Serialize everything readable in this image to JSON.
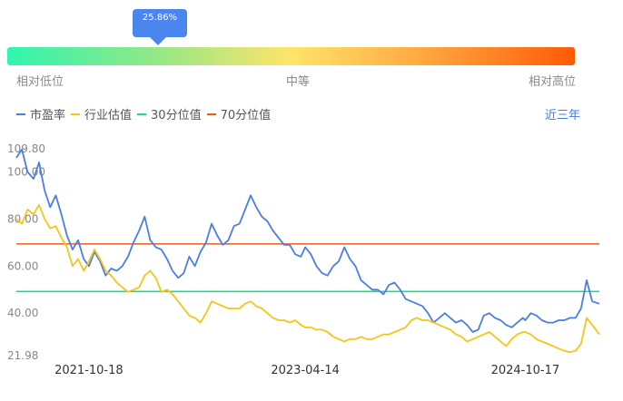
{
  "percentile": {
    "label": "25.86%",
    "value": 25.86,
    "gradient_colors": [
      "#2ff5b0",
      "#8ee888",
      "#ffe46a",
      "#ffa33d",
      "#ff5a06"
    ],
    "scale_labels": [
      "相对低位",
      "中等",
      "相对高位"
    ]
  },
  "legend": [
    {
      "label": "市盈率",
      "color": "#4a7de6"
    },
    {
      "label": "行业估值",
      "color": "#f5c518"
    },
    {
      "label": "30分位值",
      "color": "#22d98a"
    },
    {
      "label": "70分位值",
      "color": "#f05a14"
    }
  ],
  "range_selector": {
    "label": "近三年"
  },
  "chart_data": {
    "type": "line",
    "x_ticks": [
      "2021-10-18",
      "2023-04-14",
      "2024-10-17"
    ],
    "y_ticks": [
      "109.80",
      "100.00",
      "80.00",
      "60.00",
      "40.00",
      "21.98"
    ],
    "ylim": [
      21.98,
      109.8
    ],
    "xlim": [
      "2021-04-19",
      "2025-04-21"
    ],
    "reference_lines": [
      {
        "name": "30分位值",
        "value": 49.2,
        "color": "#22d98a"
      },
      {
        "name": "70分位值",
        "value": 69.4,
        "color": "#f05a14"
      }
    ],
    "series": [
      {
        "name": "市盈率",
        "color": "#4a7de6",
        "points": [
          [
            "2021-04-19",
            106
          ],
          [
            "2021-05-03",
            109.5
          ],
          [
            "2021-05-17",
            100
          ],
          [
            "2021-06-01",
            97
          ],
          [
            "2021-06-15",
            104
          ],
          [
            "2021-06-29",
            92
          ],
          [
            "2021-07-13",
            85
          ],
          [
            "2021-07-27",
            90
          ],
          [
            "2021-08-10",
            82
          ],
          [
            "2021-08-24",
            73
          ],
          [
            "2021-09-07",
            67
          ],
          [
            "2021-09-21",
            71
          ],
          [
            "2021-10-05",
            63
          ],
          [
            "2021-10-18",
            60
          ],
          [
            "2021-11-01",
            66
          ],
          [
            "2021-11-15",
            62
          ],
          [
            "2021-11-29",
            56
          ],
          [
            "2021-12-13",
            59
          ],
          [
            "2021-12-27",
            58
          ],
          [
            "2022-01-10",
            60
          ],
          [
            "2022-01-24",
            64
          ],
          [
            "2022-02-07",
            70
          ],
          [
            "2022-02-21",
            75
          ],
          [
            "2022-03-07",
            81
          ],
          [
            "2022-03-21",
            71
          ],
          [
            "2022-04-04",
            68
          ],
          [
            "2022-04-18",
            67
          ],
          [
            "2022-05-02",
            63
          ],
          [
            "2022-05-16",
            58
          ],
          [
            "2022-05-30",
            55
          ],
          [
            "2022-06-13",
            57
          ],
          [
            "2022-06-27",
            64
          ],
          [
            "2022-07-11",
            60
          ],
          [
            "2022-07-25",
            66
          ],
          [
            "2022-08-08",
            70
          ],
          [
            "2022-08-22",
            78
          ],
          [
            "2022-09-05",
            73
          ],
          [
            "2022-09-19",
            69
          ],
          [
            "2022-10-03",
            71
          ],
          [
            "2022-10-17",
            77
          ],
          [
            "2022-10-31",
            78
          ],
          [
            "2022-11-14",
            84
          ],
          [
            "2022-11-28",
            90
          ],
          [
            "2022-12-12",
            85
          ],
          [
            "2022-12-26",
            81
          ],
          [
            "2023-01-09",
            79
          ],
          [
            "2023-01-23",
            75
          ],
          [
            "2023-02-06",
            72
          ],
          [
            "2023-02-20",
            69
          ],
          [
            "2023-03-06",
            69
          ],
          [
            "2023-03-20",
            65
          ],
          [
            "2023-04-03",
            64
          ],
          [
            "2023-04-14",
            68
          ],
          [
            "2023-04-28",
            65
          ],
          [
            "2023-05-12",
            60
          ],
          [
            "2023-05-26",
            57
          ],
          [
            "2023-06-09",
            56
          ],
          [
            "2023-06-23",
            60
          ],
          [
            "2023-07-07",
            62
          ],
          [
            "2023-07-21",
            68
          ],
          [
            "2023-08-04",
            63
          ],
          [
            "2023-08-18",
            60
          ],
          [
            "2023-09-01",
            54
          ],
          [
            "2023-09-15",
            52
          ],
          [
            "2023-09-29",
            50
          ],
          [
            "2023-10-13",
            50
          ],
          [
            "2023-10-27",
            48
          ],
          [
            "2023-11-10",
            52
          ],
          [
            "2023-11-24",
            53
          ],
          [
            "2023-12-08",
            50
          ],
          [
            "2023-12-22",
            46
          ],
          [
            "2024-01-05",
            45
          ],
          [
            "2024-01-19",
            44
          ],
          [
            "2024-02-02",
            43
          ],
          [
            "2024-02-16",
            40
          ],
          [
            "2024-03-01",
            36
          ],
          [
            "2024-03-15",
            38
          ],
          [
            "2024-03-29",
            40
          ],
          [
            "2024-04-12",
            38
          ],
          [
            "2024-04-26",
            36
          ],
          [
            "2024-05-10",
            37
          ],
          [
            "2024-05-24",
            35
          ],
          [
            "2024-06-07",
            32
          ],
          [
            "2024-06-21",
            33
          ],
          [
            "2024-07-05",
            39
          ],
          [
            "2024-07-19",
            40
          ],
          [
            "2024-08-02",
            38
          ],
          [
            "2024-08-16",
            37
          ],
          [
            "2024-08-30",
            35
          ],
          [
            "2024-09-13",
            34
          ],
          [
            "2024-09-27",
            36
          ],
          [
            "2024-10-11",
            38
          ],
          [
            "2024-10-17",
            37
          ],
          [
            "2024-10-31",
            40
          ],
          [
            "2024-11-14",
            39
          ],
          [
            "2024-11-28",
            37
          ],
          [
            "2024-12-12",
            36
          ],
          [
            "2024-12-26",
            36
          ],
          [
            "2025-01-09",
            37
          ],
          [
            "2025-01-23",
            37
          ],
          [
            "2025-02-06",
            38
          ],
          [
            "2025-02-20",
            38
          ],
          [
            "2025-03-06",
            42
          ],
          [
            "2025-03-20",
            54
          ],
          [
            "2025-04-03",
            45
          ],
          [
            "2025-04-21",
            44
          ]
        ]
      },
      {
        "name": "行业估值",
        "color": "#f5c518",
        "points": [
          [
            "2021-04-19",
            80
          ],
          [
            "2021-05-03",
            78
          ],
          [
            "2021-05-17",
            84
          ],
          [
            "2021-06-01",
            82
          ],
          [
            "2021-06-15",
            86
          ],
          [
            "2021-06-29",
            80
          ],
          [
            "2021-07-13",
            76
          ],
          [
            "2021-07-27",
            77
          ],
          [
            "2021-08-10",
            72
          ],
          [
            "2021-08-24",
            68
          ],
          [
            "2021-09-07",
            60
          ],
          [
            "2021-09-21",
            63
          ],
          [
            "2021-10-05",
            58
          ],
          [
            "2021-10-18",
            62
          ],
          [
            "2021-11-01",
            67
          ],
          [
            "2021-11-15",
            63
          ],
          [
            "2021-11-29",
            58
          ],
          [
            "2021-12-13",
            56
          ],
          [
            "2021-12-27",
            53
          ],
          [
            "2022-01-10",
            51
          ],
          [
            "2022-01-24",
            49
          ],
          [
            "2022-02-07",
            50
          ],
          [
            "2022-02-21",
            51
          ],
          [
            "2022-03-07",
            56
          ],
          [
            "2022-03-21",
            58
          ],
          [
            "2022-04-04",
            55
          ],
          [
            "2022-04-18",
            49
          ],
          [
            "2022-05-02",
            50
          ],
          [
            "2022-05-16",
            48
          ],
          [
            "2022-05-30",
            45
          ],
          [
            "2022-06-13",
            42
          ],
          [
            "2022-06-27",
            39
          ],
          [
            "2022-07-11",
            38
          ],
          [
            "2022-07-25",
            36
          ],
          [
            "2022-08-08",
            40
          ],
          [
            "2022-08-22",
            45
          ],
          [
            "2022-09-05",
            44
          ],
          [
            "2022-09-19",
            43
          ],
          [
            "2022-10-03",
            42
          ],
          [
            "2022-10-17",
            42
          ],
          [
            "2022-10-31",
            42
          ],
          [
            "2022-11-14",
            44
          ],
          [
            "2022-11-28",
            45
          ],
          [
            "2022-12-12",
            43
          ],
          [
            "2022-12-26",
            42
          ],
          [
            "2023-01-09",
            40
          ],
          [
            "2023-01-23",
            38
          ],
          [
            "2023-02-06",
            37
          ],
          [
            "2023-02-20",
            37
          ],
          [
            "2023-03-06",
            36
          ],
          [
            "2023-03-20",
            37
          ],
          [
            "2023-04-03",
            35
          ],
          [
            "2023-04-14",
            34
          ],
          [
            "2023-04-28",
            34
          ],
          [
            "2023-05-12",
            33
          ],
          [
            "2023-05-26",
            33
          ],
          [
            "2023-06-09",
            32
          ],
          [
            "2023-06-23",
            30
          ],
          [
            "2023-07-07",
            29
          ],
          [
            "2023-07-21",
            28
          ],
          [
            "2023-08-04",
            29
          ],
          [
            "2023-08-18",
            29
          ],
          [
            "2023-09-01",
            30
          ],
          [
            "2023-09-15",
            29
          ],
          [
            "2023-09-29",
            29
          ],
          [
            "2023-10-13",
            30
          ],
          [
            "2023-10-27",
            31
          ],
          [
            "2023-11-10",
            31
          ],
          [
            "2023-11-24",
            32
          ],
          [
            "2023-12-08",
            33
          ],
          [
            "2023-12-22",
            34
          ],
          [
            "2024-01-05",
            37
          ],
          [
            "2024-01-19",
            38
          ],
          [
            "2024-02-02",
            37
          ],
          [
            "2024-02-16",
            37
          ],
          [
            "2024-03-01",
            36
          ],
          [
            "2024-03-15",
            35
          ],
          [
            "2024-03-29",
            34
          ],
          [
            "2024-04-12",
            33
          ],
          [
            "2024-04-26",
            31
          ],
          [
            "2024-05-10",
            30
          ],
          [
            "2024-05-24",
            28
          ],
          [
            "2024-06-07",
            29
          ],
          [
            "2024-06-21",
            30
          ],
          [
            "2024-07-05",
            31
          ],
          [
            "2024-07-19",
            32
          ],
          [
            "2024-08-02",
            30
          ],
          [
            "2024-08-16",
            28
          ],
          [
            "2024-08-30",
            26
          ],
          [
            "2024-09-13",
            29
          ],
          [
            "2024-09-27",
            31
          ],
          [
            "2024-10-11",
            32
          ],
          [
            "2024-10-17",
            32
          ],
          [
            "2024-10-31",
            31
          ],
          [
            "2024-11-14",
            29
          ],
          [
            "2024-11-28",
            28
          ],
          [
            "2024-12-12",
            27
          ],
          [
            "2024-12-26",
            26
          ],
          [
            "2025-01-09",
            25
          ],
          [
            "2025-01-23",
            24
          ],
          [
            "2025-02-06",
            23.5
          ],
          [
            "2025-02-20",
            24
          ],
          [
            "2025-03-06",
            27
          ],
          [
            "2025-03-20",
            38
          ],
          [
            "2025-04-03",
            35
          ],
          [
            "2025-04-21",
            31
          ]
        ]
      }
    ]
  }
}
